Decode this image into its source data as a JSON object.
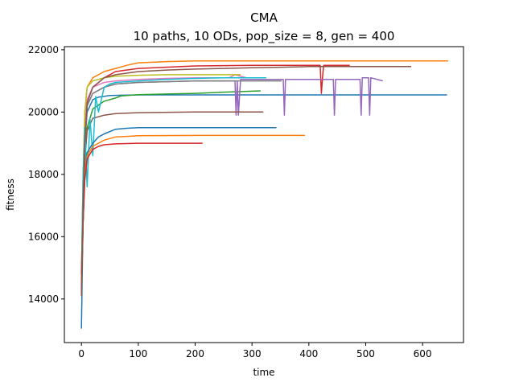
{
  "chart_data": {
    "type": "line",
    "title": "CMA",
    "subtitle": "10 paths, 10 ODs, pop_size = 8, gen = 400",
    "xlabel": "time",
    "ylabel": "fitness",
    "xlim": [
      -30,
      672
    ],
    "ylim": [
      12600,
      22100
    ],
    "xticks": [
      0,
      100,
      200,
      300,
      400,
      500,
      600
    ],
    "yticks": [
      14000,
      16000,
      18000,
      20000,
      22000
    ],
    "xtick_labels": [
      "0",
      "100",
      "200",
      "300",
      "400",
      "500",
      "600"
    ],
    "ytick_labels": [
      "14000",
      "16000",
      "18000",
      "20000",
      "22000"
    ],
    "grid": false,
    "series": [
      {
        "color": "#1f77b4",
        "x": [
          0,
          2,
          4,
          6,
          10,
          20,
          30,
          50,
          100,
          200,
          300,
          450,
          550,
          643
        ],
        "y": [
          13050,
          15500,
          17500,
          19000,
          20000,
          20400,
          20480,
          20530,
          20550,
          20550,
          20550,
          20550,
          20550,
          20550
        ]
      },
      {
        "color": "#ff7f0e",
        "x": [
          0,
          3,
          6,
          10,
          20,
          40,
          60,
          80,
          100,
          150,
          200,
          300,
          400,
          500,
          645
        ],
        "y": [
          14600,
          18000,
          20000,
          20800,
          21100,
          21300,
          21400,
          21500,
          21580,
          21620,
          21640,
          21640,
          21640,
          21640,
          21640
        ]
      },
      {
        "color": "#2ca02c",
        "x": [
          0,
          3,
          6,
          10,
          20,
          40,
          60,
          70,
          100,
          150,
          200,
          250,
          315
        ],
        "y": [
          14200,
          16500,
          18500,
          19500,
          20100,
          20350,
          20450,
          20520,
          20560,
          20580,
          20600,
          20640,
          20680
        ]
      },
      {
        "color": "#d62728",
        "x": [
          0,
          3,
          6,
          10,
          20,
          40,
          60,
          100,
          200,
          300,
          400,
          420,
          422,
          424,
          426,
          472
        ],
        "y": [
          14700,
          17000,
          19000,
          20300,
          20800,
          21100,
          21300,
          21400,
          21480,
          21500,
          21500,
          21500,
          20600,
          21100,
          21500,
          21500
        ]
      },
      {
        "color": "#9467bd",
        "x": [
          0,
          3,
          6,
          10,
          20,
          40,
          60,
          100,
          200,
          270,
          272,
          274,
          276,
          280,
          355,
          357,
          359,
          400,
          443,
          445,
          447,
          490,
          492,
          494,
          505,
          507,
          509,
          530
        ],
        "y": [
          14300,
          17000,
          19000,
          20200,
          20600,
          20800,
          20900,
          20950,
          21000,
          21000,
          19900,
          21000,
          19900,
          21050,
          21050,
          19900,
          21050,
          21050,
          21050,
          19900,
          21050,
          21050,
          19900,
          21100,
          21100,
          19900,
          21100,
          21000
        ]
      },
      {
        "color": "#8c564b",
        "x": [
          0,
          3,
          6,
          10,
          20,
          40,
          60,
          100,
          200,
          260,
          280,
          300,
          320
        ],
        "y": [
          14100,
          16500,
          18500,
          19400,
          19800,
          19900,
          19950,
          19980,
          20000,
          20000,
          20000,
          20000,
          20000
        ]
      },
      {
        "color": "#e377c2",
        "x": [
          0,
          3,
          6,
          10,
          20,
          40,
          60,
          100,
          150,
          200,
          260,
          270,
          280,
          290,
          300,
          310,
          320
        ],
        "y": [
          14500,
          17500,
          19500,
          20400,
          20800,
          20950,
          21000,
          21050,
          21080,
          21100,
          21100,
          21200,
          21150,
          21100,
          21100,
          21100,
          21100
        ]
      },
      {
        "color": "#7f7f7f",
        "x": [
          0,
          3,
          6,
          10,
          20,
          40,
          60,
          100,
          200,
          260,
          300,
          330,
          352
        ],
        "y": [
          14400,
          17000,
          19000,
          20200,
          20600,
          20800,
          20900,
          20950,
          21000,
          21000,
          21000,
          21000,
          21000
        ]
      },
      {
        "color": "#bcbd22",
        "x": [
          0,
          3,
          6,
          10,
          20,
          40,
          60,
          100,
          150,
          200,
          250,
          280
        ],
        "y": [
          14800,
          18000,
          20000,
          20800,
          21000,
          21100,
          21150,
          21180,
          21200,
          21200,
          21200,
          21200
        ]
      },
      {
        "color": "#17becf",
        "x": [
          0,
          3,
          6,
          10,
          15,
          20,
          25,
          30,
          40,
          50,
          60,
          100,
          150,
          200,
          250,
          300,
          325
        ],
        "y": [
          14600,
          18000,
          19500,
          17600,
          19800,
          18600,
          20500,
          20000,
          20800,
          20900,
          20950,
          21000,
          21050,
          21080,
          21100,
          21100,
          21100
        ]
      },
      {
        "color": "#1f77b4",
        "x": [
          0,
          3,
          6,
          10,
          20,
          30,
          40,
          60,
          80,
          100,
          200,
          300,
          343
        ],
        "y": [
          14600,
          16500,
          18000,
          18700,
          19000,
          19200,
          19300,
          19450,
          19480,
          19500,
          19500,
          19500,
          19500
        ]
      },
      {
        "color": "#ff7f0e",
        "x": [
          0,
          3,
          6,
          10,
          20,
          30,
          40,
          60,
          80,
          100,
          200,
          300,
          393
        ],
        "y": [
          14600,
          16500,
          18000,
          18600,
          18900,
          19000,
          19100,
          19200,
          19220,
          19240,
          19250,
          19250,
          19250
        ]
      },
      {
        "color": "#d62728",
        "x": [
          0,
          3,
          6,
          10,
          20,
          30,
          40,
          60,
          100,
          150,
          213
        ],
        "y": [
          14800,
          16500,
          17800,
          18500,
          18800,
          18900,
          18950,
          18980,
          19000,
          19000,
          19000
        ]
      },
      {
        "color": "#8c564b",
        "x": [
          0,
          3,
          6,
          10,
          20,
          40,
          60,
          100,
          150,
          200,
          250,
          300,
          350,
          400,
          450,
          500,
          580
        ],
        "y": [
          14200,
          17000,
          19000,
          20300,
          20800,
          21100,
          21200,
          21300,
          21350,
          21380,
          21400,
          21420,
          21440,
          21460,
          21460,
          21460,
          21460
        ]
      }
    ]
  }
}
